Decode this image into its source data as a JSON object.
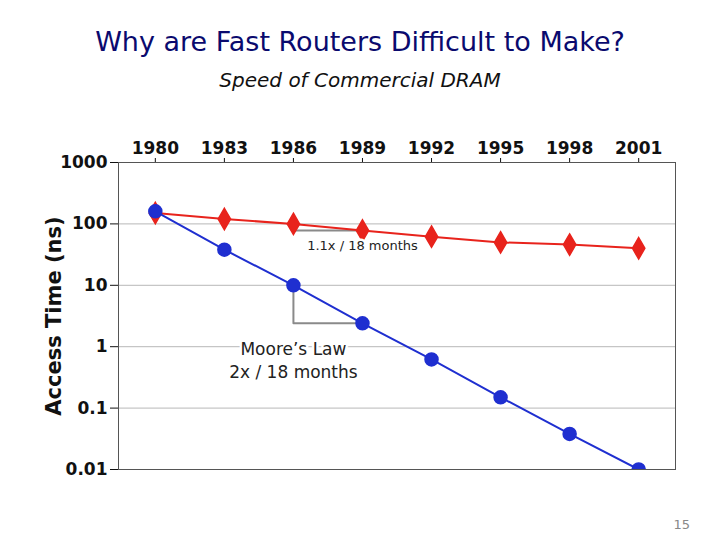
{
  "chart_data": {
    "type": "line",
    "title": "Why are Fast Routers Difficult to Make?",
    "subtitle": "Speed of Commercial DRAM",
    "y_label": "Access Time (ns)",
    "x": [
      1980,
      1983,
      1986,
      1989,
      1992,
      1995,
      1998,
      2001
    ],
    "series": [
      {
        "color": "#e8231c",
        "marker": "diamond",
        "values": [
          150,
          120,
          100,
          78,
          62,
          50,
          46,
          40
        ]
      },
      {
        "color": "#1f2fd0",
        "marker": "circle",
        "values": [
          160,
          38,
          10,
          2.4,
          0.62,
          0.15,
          0.038,
          0.01
        ]
      }
    ],
    "xlim": [
      1978.4,
      2002.6
    ],
    "xticks": [
      1980,
      1983,
      1986,
      1989,
      1992,
      1995,
      1998,
      2001
    ],
    "ylim": [
      0.01,
      1000
    ],
    "yticks": [
      1000,
      100,
      10,
      1,
      0.1,
      0.01
    ],
    "log": "y",
    "grid": true,
    "annotations": [
      "1.1x / 18 months",
      "Moore’s Law\n2x / 18 months"
    ],
    "page_number": "15"
  }
}
